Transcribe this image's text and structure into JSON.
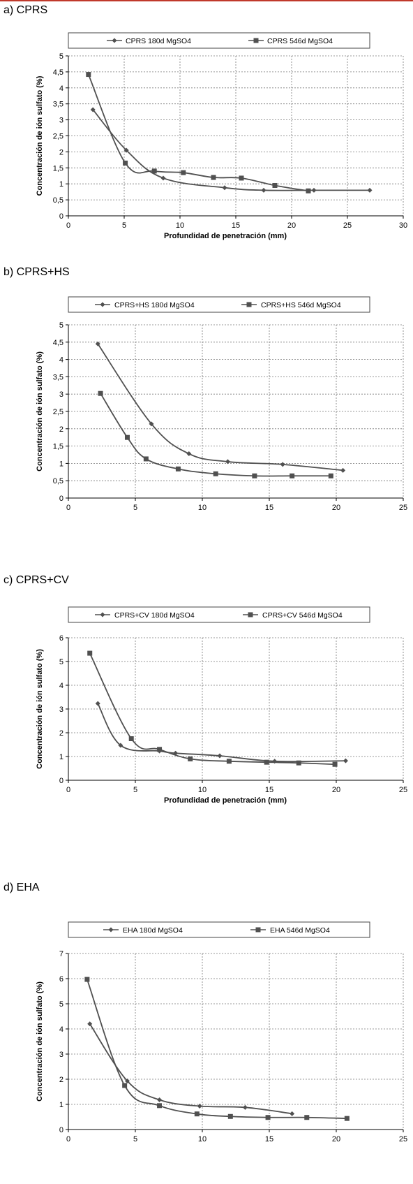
{
  "chart_data": [
    {
      "panel_title": "a) CPRS",
      "type": "line",
      "xlabel": "Profundidad de penetración (mm)",
      "ylabel": "Concentración de ión sulfato (%)",
      "xlim": [
        0,
        30
      ],
      "ylim": [
        0,
        5
      ],
      "xticks": [
        "0",
        "5",
        "10",
        "15",
        "20",
        "25",
        "30"
      ],
      "yticks": [
        "0",
        "0,5",
        "1",
        "1,5",
        "2",
        "2,5",
        "3",
        "3,5",
        "4",
        "4,5",
        "5"
      ],
      "grid": true,
      "legend": "top",
      "series": [
        {
          "name": "CPRS 180d MgSO4",
          "marker": "diamond",
          "x": [
            2.2,
            5.2,
            8.5,
            14,
            17.5,
            22,
            27
          ],
          "y": [
            3.32,
            2.05,
            1.18,
            0.88,
            0.8,
            0.8,
            0.8
          ]
        },
        {
          "name": "CPRS 546d MgSO4",
          "marker": "square",
          "x": [
            1.8,
            5.1,
            7.7,
            10.3,
            13,
            15.5,
            18.5,
            21.5
          ],
          "y": [
            4.42,
            1.65,
            1.4,
            1.35,
            1.2,
            1.18,
            0.95,
            0.78
          ]
        }
      ]
    },
    {
      "panel_title": "b) CPRS+HS",
      "type": "line",
      "xlabel": "Profundidad de penetración (mm)",
      "ylabel": "Concentración de ión sulfato (%)",
      "xlim": [
        0,
        25
      ],
      "ylim": [
        0,
        5
      ],
      "xticks": [
        "0",
        "5",
        "10",
        "15",
        "20",
        "25"
      ],
      "yticks": [
        "0",
        "0,5",
        "1",
        "1,5",
        "2",
        "2,5",
        "3",
        "3,5",
        "4",
        "4,5",
        "5"
      ],
      "grid": true,
      "legend": "top",
      "series": [
        {
          "name": "CPRS+HS 180d MgSO4",
          "marker": "diamond",
          "x": [
            2.2,
            6.2,
            9,
            11.9,
            16,
            20.5
          ],
          "y": [
            4.45,
            2.14,
            1.28,
            1.05,
            0.97,
            0.8
          ]
        },
        {
          "name": "CPRS+HS 546d MgSO4",
          "marker": "square",
          "x": [
            2.4,
            4.4,
            5.8,
            8.2,
            11,
            13.9,
            16.7,
            19.6
          ],
          "y": [
            3.02,
            1.75,
            1.13,
            0.84,
            0.7,
            0.64,
            0.64,
            0.64
          ]
        }
      ]
    },
    {
      "panel_title": "c) CPRS+CV",
      "type": "line",
      "xlabel": "Profundidad de penetración (mm)",
      "ylabel": "Concentración de ión sulfato (%)",
      "xlim": [
        0,
        25
      ],
      "ylim": [
        0,
        6
      ],
      "xticks": [
        "0",
        "5",
        "10",
        "15",
        "20",
        "25"
      ],
      "yticks": [
        "0",
        "1",
        "2",
        "3",
        "4",
        "5",
        "6"
      ],
      "grid": true,
      "legend": "top",
      "series": [
        {
          "name": "CPRS+CV 180d MgSO4",
          "marker": "diamond",
          "x": [
            2.2,
            3.9,
            6.8,
            8,
            11.3,
            15.4,
            20.7
          ],
          "y": [
            3.23,
            1.47,
            1.23,
            1.14,
            1.03,
            0.8,
            0.82
          ]
        },
        {
          "name": "CPRS+CV 546d MgSO4",
          "marker": "square",
          "x": [
            1.6,
            4.7,
            6.8,
            9.1,
            12,
            14.8,
            17.2,
            19.9
          ],
          "y": [
            5.35,
            1.75,
            1.3,
            0.9,
            0.8,
            0.76,
            0.73,
            0.67
          ]
        }
      ]
    },
    {
      "panel_title": "d) EHA",
      "type": "line",
      "xlabel": "Profundidad de penetración (mm)",
      "ylabel": "Concentración de ión sulfato (%)",
      "xlim": [
        0,
        25
      ],
      "ylim": [
        0,
        7
      ],
      "xticks": [
        "0",
        "5",
        "10",
        "15",
        "20",
        "25"
      ],
      "yticks": [
        "0",
        "1",
        "2",
        "3",
        "4",
        "5",
        "6",
        "7"
      ],
      "grid": true,
      "legend": "top",
      "series": [
        {
          "name": "EHA 180d MgSO4",
          "marker": "diamond",
          "x": [
            1.6,
            4.4,
            6.8,
            9.8,
            13.2,
            16.7
          ],
          "y": [
            4.2,
            1.93,
            1.18,
            0.93,
            0.88,
            0.63
          ]
        },
        {
          "name": "EHA 546d MgSO4",
          "marker": "square",
          "x": [
            1.4,
            4.2,
            6.8,
            9.6,
            12.1,
            14.9,
            17.8,
            20.8
          ],
          "y": [
            5.97,
            1.75,
            0.95,
            0.62,
            0.52,
            0.48,
            0.48,
            0.44
          ]
        }
      ]
    }
  ]
}
